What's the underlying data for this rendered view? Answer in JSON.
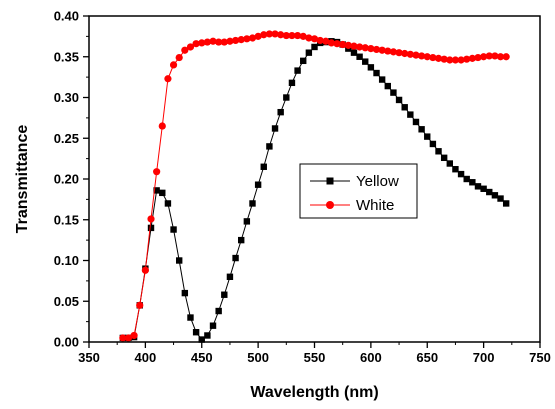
{
  "chart_data": {
    "type": "line",
    "title": "",
    "xlabel": "Wavelength (nm)",
    "ylabel": "Transmittance",
    "xlim": [
      350,
      750
    ],
    "ylim": [
      0.0,
      0.4
    ],
    "x_ticks": [
      "350",
      "400",
      "450",
      "500",
      "550",
      "600",
      "650",
      "700",
      "750"
    ],
    "y_ticks": [
      "0.00",
      "0.05",
      "0.10",
      "0.15",
      "0.20",
      "0.25",
      "0.30",
      "0.35",
      "0.40"
    ],
    "grid": false,
    "legend_position": "center-right",
    "series": [
      {
        "name": "Yellow",
        "color": "#000000",
        "marker": "square",
        "x": [
          380,
          385,
          390,
          395,
          400,
          405,
          410,
          415,
          420,
          425,
          430,
          435,
          440,
          445,
          450,
          455,
          460,
          465,
          470,
          475,
          480,
          485,
          490,
          495,
          500,
          505,
          510,
          515,
          520,
          525,
          530,
          535,
          540,
          545,
          550,
          555,
          560,
          565,
          570,
          575,
          580,
          585,
          590,
          595,
          600,
          605,
          610,
          615,
          620,
          625,
          630,
          635,
          640,
          645,
          650,
          655,
          660,
          665,
          670,
          675,
          680,
          685,
          690,
          695,
          700,
          705,
          710,
          715,
          720
        ],
        "y": [
          0.005,
          0.005,
          0.006,
          0.045,
          0.09,
          0.14,
          0.186,
          0.183,
          0.17,
          0.138,
          0.1,
          0.06,
          0.03,
          0.012,
          0.003,
          0.008,
          0.02,
          0.038,
          0.058,
          0.08,
          0.103,
          0.125,
          0.148,
          0.17,
          0.193,
          0.215,
          0.24,
          0.262,
          0.282,
          0.3,
          0.318,
          0.333,
          0.345,
          0.355,
          0.362,
          0.367,
          0.368,
          0.369,
          0.368,
          0.365,
          0.36,
          0.355,
          0.35,
          0.344,
          0.337,
          0.33,
          0.322,
          0.314,
          0.306,
          0.297,
          0.288,
          0.279,
          0.27,
          0.261,
          0.252,
          0.243,
          0.234,
          0.226,
          0.219,
          0.212,
          0.206,
          0.2,
          0.196,
          0.191,
          0.188,
          0.184,
          0.18,
          0.176,
          0.17
        ]
      },
      {
        "name": "White",
        "color": "#ff0000",
        "marker": "circle",
        "x": [
          380,
          385,
          390,
          395,
          400,
          405,
          410,
          415,
          420,
          425,
          430,
          435,
          440,
          445,
          450,
          455,
          460,
          465,
          470,
          475,
          480,
          485,
          490,
          495,
          500,
          505,
          510,
          515,
          520,
          525,
          530,
          535,
          540,
          545,
          550,
          555,
          560,
          565,
          570,
          575,
          580,
          585,
          590,
          595,
          600,
          605,
          610,
          615,
          620,
          625,
          630,
          635,
          640,
          645,
          650,
          655,
          660,
          665,
          670,
          675,
          680,
          685,
          690,
          695,
          700,
          705,
          710,
          715,
          720
        ],
        "y": [
          0.005,
          0.005,
          0.008,
          0.045,
          0.088,
          0.151,
          0.209,
          0.265,
          0.323,
          0.34,
          0.349,
          0.358,
          0.362,
          0.366,
          0.367,
          0.368,
          0.369,
          0.368,
          0.368,
          0.369,
          0.37,
          0.371,
          0.372,
          0.373,
          0.375,
          0.377,
          0.378,
          0.378,
          0.377,
          0.376,
          0.376,
          0.376,
          0.375,
          0.373,
          0.372,
          0.37,
          0.369,
          0.367,
          0.366,
          0.365,
          0.364,
          0.363,
          0.362,
          0.361,
          0.36,
          0.359,
          0.358,
          0.357,
          0.356,
          0.355,
          0.354,
          0.353,
          0.352,
          0.351,
          0.35,
          0.349,
          0.348,
          0.347,
          0.346,
          0.346,
          0.346,
          0.347,
          0.348,
          0.349,
          0.35,
          0.351,
          0.351,
          0.35,
          0.35
        ]
      }
    ]
  }
}
